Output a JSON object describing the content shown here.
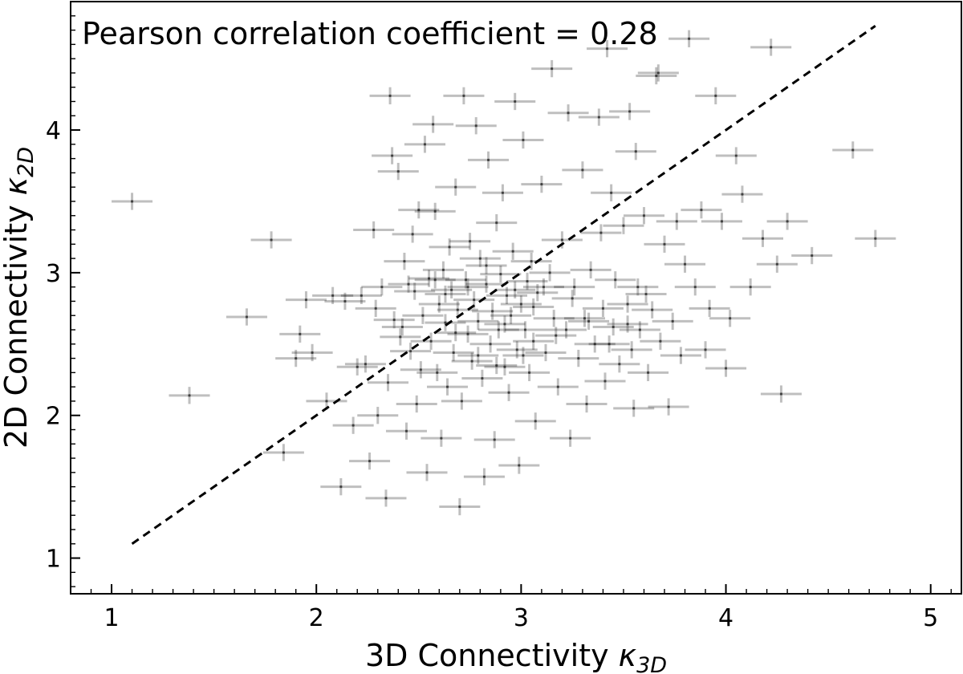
{
  "chart_data": {
    "type": "scatter",
    "annotation": "Pearson correlation coefficient = 0.28",
    "xlabel_main": "3D Connectivity ",
    "xlabel_symbol": "κ",
    "xlabel_sub": "3D",
    "ylabel_main": "2D Connectivity ",
    "ylabel_symbol": "κ",
    "ylabel_sub": "2D",
    "xlim": [
      0.8,
      5.15
    ],
    "ylim": [
      0.75,
      4.9
    ],
    "xticks": [
      "1",
      "2",
      "3",
      "4",
      "5"
    ],
    "yticks": [
      "1",
      "2",
      "3",
      "4"
    ],
    "grid": false,
    "point_color": "#000000",
    "point_opacity": 0.25,
    "error_bars": {
      "x_half_width": 0.1,
      "y_half_height": 0.06
    },
    "reference_line": {
      "style": "dashed",
      "color": "#000000",
      "x": [
        1.1,
        4.73
      ],
      "y": [
        1.1,
        4.73
      ]
    },
    "points": [
      [
        1.1,
        3.5
      ],
      [
        1.38,
        2.14
      ],
      [
        1.66,
        2.69
      ],
      [
        1.78,
        3.23
      ],
      [
        1.84,
        1.74
      ],
      [
        1.9,
        2.4
      ],
      [
        1.92,
        2.57
      ],
      [
        1.95,
        2.81
      ],
      [
        1.98,
        2.44
      ],
      [
        2.05,
        2.1
      ],
      [
        2.08,
        2.84
      ],
      [
        2.12,
        1.5
      ],
      [
        2.18,
        1.93
      ],
      [
        2.2,
        2.34
      ],
      [
        2.22,
        2.84
      ],
      [
        2.24,
        2.36
      ],
      [
        2.26,
        1.68
      ],
      [
        2.28,
        3.3
      ],
      [
        2.3,
        2.0
      ],
      [
        2.32,
        2.9
      ],
      [
        2.34,
        1.42
      ],
      [
        2.35,
        2.23
      ],
      [
        2.36,
        4.24
      ],
      [
        2.37,
        3.82
      ],
      [
        2.38,
        2.67
      ],
      [
        2.4,
        3.71
      ],
      [
        2.42,
        2.62
      ],
      [
        2.43,
        3.08
      ],
      [
        2.44,
        1.89
      ],
      [
        2.45,
        2.92
      ],
      [
        2.46,
        2.45
      ],
      [
        2.47,
        3.27
      ],
      [
        2.48,
        2.87
      ],
      [
        2.49,
        2.08
      ],
      [
        2.5,
        3.44
      ],
      [
        2.52,
        2.7
      ],
      [
        2.53,
        3.9
      ],
      [
        2.54,
        1.6
      ],
      [
        2.55,
        2.96
      ],
      [
        2.56,
        2.52
      ],
      [
        2.57,
        4.04
      ],
      [
        2.58,
        3.43
      ],
      [
        2.59,
        2.3
      ],
      [
        2.6,
        2.78
      ],
      [
        2.61,
        1.84
      ],
      [
        2.62,
        3.02
      ],
      [
        2.63,
        2.65
      ],
      [
        2.64,
        2.2
      ],
      [
        2.65,
        3.18
      ],
      [
        2.66,
        2.88
      ],
      [
        2.67,
        2.44
      ],
      [
        2.68,
        3.6
      ],
      [
        2.69,
        2.74
      ],
      [
        2.7,
        1.36
      ],
      [
        2.71,
        2.1
      ],
      [
        2.72,
        4.24
      ],
      [
        2.73,
        2.95
      ],
      [
        2.74,
        2.57
      ],
      [
        2.75,
        3.22
      ],
      [
        2.76,
        2.38
      ],
      [
        2.77,
        2.81
      ],
      [
        2.78,
        4.03
      ],
      [
        2.79,
        2.66
      ],
      [
        2.8,
        3.1
      ],
      [
        2.81,
        2.26
      ],
      [
        2.82,
        1.57
      ],
      [
        2.83,
        2.92
      ],
      [
        2.84,
        3.79
      ],
      [
        2.85,
        2.5
      ],
      [
        2.86,
        2.73
      ],
      [
        2.87,
        1.83
      ],
      [
        2.88,
        3.35
      ],
      [
        2.89,
        2.6
      ],
      [
        2.9,
        2.99
      ],
      [
        2.91,
        3.56
      ],
      [
        2.92,
        2.34
      ],
      [
        2.93,
        2.84
      ],
      [
        2.94,
        2.16
      ],
      [
        2.95,
        2.7
      ],
      [
        2.96,
        3.15
      ],
      [
        2.97,
        4.2
      ],
      [
        2.98,
        2.46
      ],
      [
        2.99,
        1.65
      ],
      [
        3.0,
        2.78
      ],
      [
        3.01,
        3.93
      ],
      [
        3.02,
        2.6
      ],
      [
        3.03,
        2.94
      ],
      [
        3.04,
        2.3
      ],
      [
        3.05,
        3.08
      ],
      [
        3.06,
        2.52
      ],
      [
        3.07,
        1.96
      ],
      [
        3.08,
        2.86
      ],
      [
        3.1,
        3.62
      ],
      [
        3.12,
        2.44
      ],
      [
        3.14,
        3.0
      ],
      [
        3.15,
        4.43
      ],
      [
        3.16,
        2.68
      ],
      [
        3.18,
        2.2
      ],
      [
        3.2,
        3.23
      ],
      [
        3.22,
        2.6
      ],
      [
        3.23,
        4.12
      ],
      [
        3.24,
        1.84
      ],
      [
        3.26,
        2.9
      ],
      [
        3.28,
        2.4
      ],
      [
        3.3,
        3.72
      ],
      [
        3.31,
        2.68
      ],
      [
        3.32,
        2.08
      ],
      [
        3.34,
        3.02
      ],
      [
        3.36,
        2.5
      ],
      [
        3.38,
        4.09
      ],
      [
        3.39,
        3.28
      ],
      [
        3.4,
        2.75
      ],
      [
        3.41,
        2.24
      ],
      [
        3.42,
        4.57
      ],
      [
        3.44,
        3.56
      ],
      [
        3.45,
        2.62
      ],
      [
        3.46,
        2.95
      ],
      [
        3.48,
        2.36
      ],
      [
        3.5,
        3.33
      ],
      [
        3.52,
        2.78
      ],
      [
        3.53,
        4.13
      ],
      [
        3.54,
        2.46
      ],
      [
        3.55,
        2.05
      ],
      [
        3.56,
        3.85
      ],
      [
        3.57,
        2.9
      ],
      [
        3.58,
        2.6
      ],
      [
        3.6,
        3.4
      ],
      [
        3.62,
        2.3
      ],
      [
        3.64,
        2.74
      ],
      [
        3.66,
        4.38
      ],
      [
        3.67,
        4.4
      ],
      [
        3.68,
        2.52
      ],
      [
        3.7,
        3.2
      ],
      [
        3.72,
        2.06
      ],
      [
        3.74,
        2.66
      ],
      [
        3.76,
        3.36
      ],
      [
        3.78,
        2.42
      ],
      [
        3.8,
        3.06
      ],
      [
        3.82,
        4.64
      ],
      [
        3.85,
        2.9
      ],
      [
        3.88,
        3.44
      ],
      [
        3.9,
        2.46
      ],
      [
        3.92,
        2.75
      ],
      [
        3.95,
        4.24
      ],
      [
        3.98,
        3.36
      ],
      [
        4.0,
        2.33
      ],
      [
        4.02,
        2.68
      ],
      [
        4.05,
        3.82
      ],
      [
        4.08,
        3.55
      ],
      [
        4.12,
        2.9
      ],
      [
        4.18,
        3.24
      ],
      [
        4.22,
        4.58
      ],
      [
        4.25,
        3.06
      ],
      [
        4.27,
        2.15
      ],
      [
        4.3,
        3.36
      ],
      [
        4.42,
        3.12
      ],
      [
        4.62,
        3.86
      ],
      [
        4.73,
        3.24
      ],
      [
        2.14,
        2.8
      ],
      [
        2.29,
        2.75
      ],
      [
        2.41,
        2.55
      ],
      [
        2.51,
        2.32
      ],
      [
        2.58,
        2.95
      ],
      [
        2.63,
        2.85
      ],
      [
        2.68,
        2.58
      ],
      [
        2.74,
        2.9
      ],
      [
        2.79,
        2.42
      ],
      [
        2.83,
        3.05
      ],
      [
        2.88,
        2.35
      ],
      [
        2.92,
        2.64
      ],
      [
        2.97,
        2.88
      ],
      [
        3.01,
        2.42
      ],
      [
        3.06,
        2.76
      ],
      [
        3.11,
        2.9
      ],
      [
        3.17,
        2.56
      ],
      [
        3.25,
        2.82
      ],
      [
        3.33,
        2.66
      ],
      [
        3.43,
        2.5
      ],
      [
        3.52,
        2.64
      ],
      [
        3.61,
        2.85
      ]
    ]
  }
}
